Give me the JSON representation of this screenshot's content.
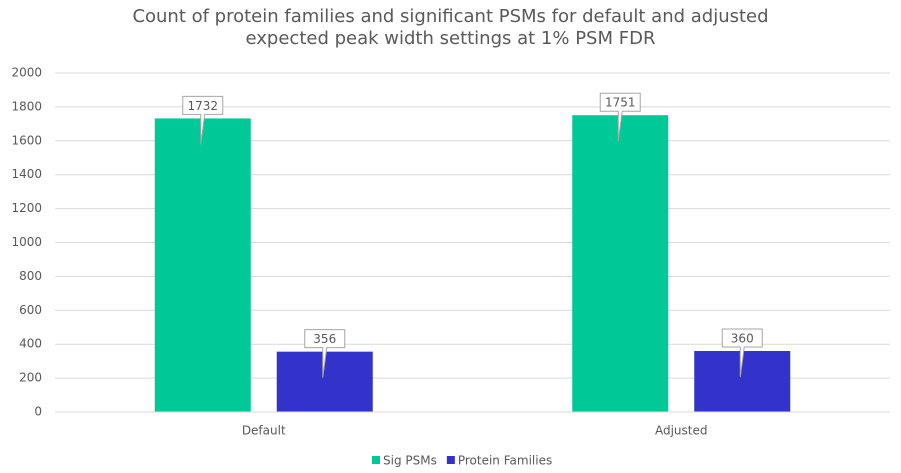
{
  "chart_data": {
    "type": "bar",
    "title": "Count of protein families and significant PSMs for default and adjusted expected peak width settings at 1% PSM FDR",
    "categories": [
      "Default",
      "Adjusted"
    ],
    "series": [
      {
        "name": "Sig PSMs",
        "color": "#00c897",
        "values": [
          1732,
          1751
        ]
      },
      {
        "name": "Protein Families",
        "color": "#3333cc",
        "values": [
          356,
          360
        ]
      }
    ],
    "ylim": [
      0,
      2000
    ],
    "yticks": [
      0,
      200,
      400,
      600,
      800,
      1000,
      1200,
      1400,
      1600,
      1800,
      2000
    ],
    "grid": true,
    "legend": "bottom"
  }
}
